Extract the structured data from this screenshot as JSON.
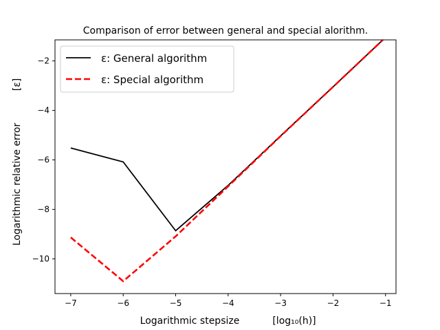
{
  "chart_data": {
    "type": "line",
    "title": "Comparison of error between general and special alorithm.",
    "xlabel": "Logarithmic stepsize",
    "xlabel_unit": "[log₁₀(h)]",
    "ylabel": "Logarithmic relative error",
    "ylabel_unit": "[ε]",
    "xlim": [
      -7.3,
      -0.8
    ],
    "ylim": [
      -11.4,
      -1.15
    ],
    "xticks": [
      -7,
      -6,
      -5,
      -4,
      -3,
      -2,
      -1
    ],
    "xtick_labels": [
      "−7",
      "−6",
      "−5",
      "−4",
      "−3",
      "−2",
      "−1"
    ],
    "yticks": [
      -10,
      -8,
      -6,
      -4,
      -2
    ],
    "ytick_labels": [
      "−10",
      "−8",
      "−6",
      "−4",
      "−2"
    ],
    "grid": false,
    "legend_position": "top-left",
    "series": [
      {
        "name": "ε: General algorithm",
        "color": "#000000",
        "style": "solid",
        "x": [
          -7,
          -6,
          -5,
          -4,
          -3,
          -2,
          -1.05
        ],
        "y": [
          -5.52,
          -6.08,
          -8.86,
          -7.03,
          -5.03,
          -3.05,
          -1.15
        ]
      },
      {
        "name": "ε: Special algorithm",
        "color": "#ff0000",
        "style": "dashed",
        "x": [
          -7,
          -6,
          -5,
          -4,
          -3,
          -2,
          -1.05
        ],
        "y": [
          -9.13,
          -10.9,
          -9.09,
          -7.07,
          -5.04,
          -3.05,
          -1.15
        ]
      }
    ]
  }
}
